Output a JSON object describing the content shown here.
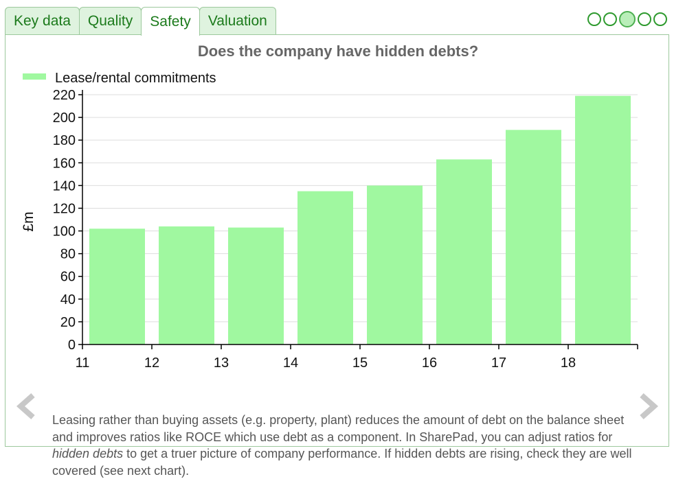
{
  "tabs": [
    {
      "label": "Key data",
      "active": false
    },
    {
      "label": "Quality",
      "active": false
    },
    {
      "label": "Safety",
      "active": true
    },
    {
      "label": "Valuation",
      "active": false
    }
  ],
  "page_dots": {
    "count": 5,
    "active_index": 2
  },
  "description": {
    "part1": "Leasing rather than buying assets (e.g. property, plant) reduces the amount of debt on the balance sheet and improves ratios like ROCE which use debt as a component. In SharePad, you can adjust ratios for ",
    "emphasis": "hidden debts",
    "part2": " to get a truer picture of company performance. If hidden debts are rising, check they are well covered (see next chart)."
  },
  "navigation": {
    "prev_icon": "chevron-left-icon",
    "next_icon": "chevron-right-icon"
  },
  "colors": {
    "bar": "#a0f8a0",
    "accent": "#1b7a1b",
    "tab_background": "#dff3df",
    "border": "#9cc89c"
  },
  "chart_data": {
    "type": "bar",
    "title": "Does the company have hidden debts?",
    "xlabel": "",
    "ylabel": "£m",
    "x_ticks": [
      11,
      12,
      13,
      14,
      15,
      16,
      17,
      18
    ],
    "xlim": [
      11,
      19
    ],
    "ylim": [
      0,
      220
    ],
    "y_ticks": [
      0,
      20,
      40,
      60,
      80,
      100,
      120,
      140,
      160,
      180,
      200,
      220
    ],
    "grid": true,
    "legend_position": "top-left",
    "series": [
      {
        "name": "Lease/rental commitments",
        "color": "#a0f8a0",
        "x": [
          11,
          12,
          13,
          14,
          15,
          16,
          17,
          18
        ],
        "values": [
          102,
          104,
          103,
          135,
          140,
          163,
          189,
          219
        ]
      }
    ]
  }
}
